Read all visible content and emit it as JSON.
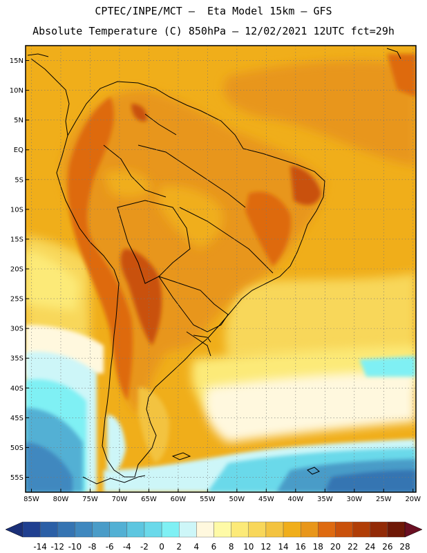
{
  "header": {
    "line1": "CPTEC/INPE/MCT –  Eta Model 15km – GFS",
    "line2": "Absolute Temperature (C) 850hPa – 12/02/2021 12UTC fct=29h"
  },
  "map": {
    "lat_labels": [
      "15N",
      "10N",
      "5N",
      "EQ",
      "5S",
      "10S",
      "15S",
      "20S",
      "25S",
      "30S",
      "35S",
      "40S",
      "45S",
      "50S",
      "55S"
    ],
    "lon_labels": [
      "85W",
      "80W",
      "75W",
      "70W",
      "65W",
      "60W",
      "55W",
      "50W",
      "45W",
      "40W",
      "35W",
      "30W",
      "25W",
      "20W"
    ],
    "lat_range": [
      17.5,
      -57.5
    ],
    "lon_range": [
      -86,
      -19.5
    ]
  },
  "colorbar": {
    "labels": [
      "-14",
      "-12",
      "-10",
      "-8",
      "-6",
      "-4",
      "-2",
      "0",
      "2",
      "4",
      "6",
      "8",
      "10",
      "12",
      "14",
      "16",
      "18",
      "20",
      "22",
      "24",
      "26",
      "28"
    ],
    "colors": [
      "#1f3f90",
      "#2b5fa6",
      "#3574b2",
      "#3f88bf",
      "#4a9cc8",
      "#52b0d4",
      "#5dc6e0",
      "#6ad9ea",
      "#7ff0f4",
      "#cdf6f8",
      "#fff8de",
      "#fefaa6",
      "#fcea78",
      "#f8d75a",
      "#f3c340",
      "#f0ae1a",
      "#e8961a",
      "#de6a10",
      "#c9510b",
      "#b03d06",
      "#922a06",
      "#6e1806"
    ]
  }
}
